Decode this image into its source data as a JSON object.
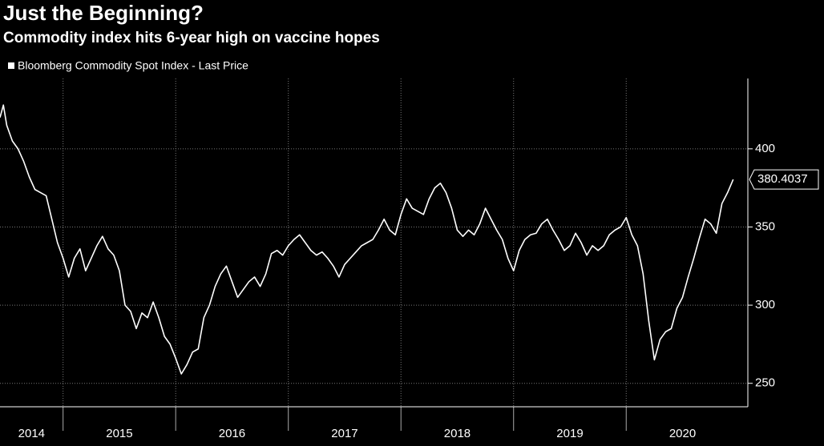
{
  "chart_data": {
    "type": "line",
    "title": "Just the Beginning?",
    "subtitle": "Commodity index hits 6-year high on vaccine hopes",
    "x": [
      2014.44,
      2014.47,
      2014.5,
      2014.55,
      2014.6,
      2014.65,
      2014.7,
      2014.75,
      2014.8,
      2014.85,
      2014.9,
      2014.95,
      2015.0,
      2015.05,
      2015.1,
      2015.15,
      2015.2,
      2015.25,
      2015.3,
      2015.35,
      2015.4,
      2015.45,
      2015.5,
      2015.55,
      2015.6,
      2015.65,
      2015.7,
      2015.75,
      2015.8,
      2015.85,
      2015.9,
      2015.95,
      2016.0,
      2016.05,
      2016.1,
      2016.15,
      2016.2,
      2016.25,
      2016.3,
      2016.35,
      2016.4,
      2016.45,
      2016.5,
      2016.55,
      2016.6,
      2016.65,
      2016.7,
      2016.75,
      2016.8,
      2016.85,
      2016.9,
      2016.95,
      2017.0,
      2017.05,
      2017.1,
      2017.15,
      2017.2,
      2017.25,
      2017.3,
      2017.35,
      2017.4,
      2017.45,
      2017.5,
      2017.55,
      2017.6,
      2017.65,
      2017.7,
      2017.75,
      2017.8,
      2017.85,
      2017.9,
      2017.95,
      2018.0,
      2018.05,
      2018.1,
      2018.15,
      2018.2,
      2018.25,
      2018.3,
      2018.35,
      2018.4,
      2018.45,
      2018.5,
      2018.55,
      2018.6,
      2018.65,
      2018.7,
      2018.75,
      2018.8,
      2018.85,
      2018.9,
      2018.95,
      2019.0,
      2019.05,
      2019.1,
      2019.15,
      2019.2,
      2019.25,
      2019.3,
      2019.35,
      2019.4,
      2019.45,
      2019.5,
      2019.55,
      2019.6,
      2019.65,
      2019.7,
      2019.75,
      2019.8,
      2019.85,
      2019.9,
      2019.95,
      2020.0,
      2020.05,
      2020.1,
      2020.15,
      2020.2,
      2020.25,
      2020.3,
      2020.35,
      2020.4,
      2020.45,
      2020.5,
      2020.55,
      2020.6,
      2020.65,
      2020.7,
      2020.75,
      2020.8,
      2020.85,
      2020.9,
      2020.95
    ],
    "series": [
      {
        "name": "Bloomberg Commodity Spot Index - Last Price",
        "color": "#ffffff",
        "values": [
          420,
          428,
          415,
          405,
          400,
          392,
          382,
          374,
          372,
          370,
          355,
          340,
          330,
          318,
          330,
          336,
          322,
          330,
          338,
          344,
          336,
          332,
          322,
          300,
          296,
          285,
          295,
          292,
          302,
          292,
          280,
          275,
          266,
          256,
          262,
          270,
          272,
          292,
          300,
          312,
          320,
          325,
          315,
          305,
          310,
          315,
          318,
          312,
          320,
          333,
          335,
          332,
          338,
          342,
          345,
          340,
          335,
          332,
          334,
          330,
          325,
          318,
          326,
          330,
          334,
          338,
          340,
          342,
          348,
          355,
          348,
          345,
          358,
          368,
          362,
          360,
          358,
          368,
          375,
          378,
          372,
          362,
          348,
          344,
          348,
          345,
          352,
          362,
          355,
          348,
          342,
          330,
          322,
          335,
          342,
          345,
          346,
          352,
          355,
          348,
          342,
          335,
          338,
          346,
          340,
          332,
          338,
          335,
          338,
          345,
          348,
          350,
          356,
          345,
          338,
          320,
          290,
          265,
          278,
          283,
          285,
          298,
          305,
          318,
          330,
          343,
          355,
          352,
          346,
          365,
          372,
          380.4037
        ]
      }
    ],
    "xlim": [
      2014.44,
      2021.08
    ],
    "xticks": [
      2014,
      2015,
      2016,
      2017,
      2018,
      2019,
      2020
    ],
    "ylim": [
      235,
      445
    ],
    "yticks": [
      250,
      300,
      350,
      400
    ],
    "grid": true
  }
}
